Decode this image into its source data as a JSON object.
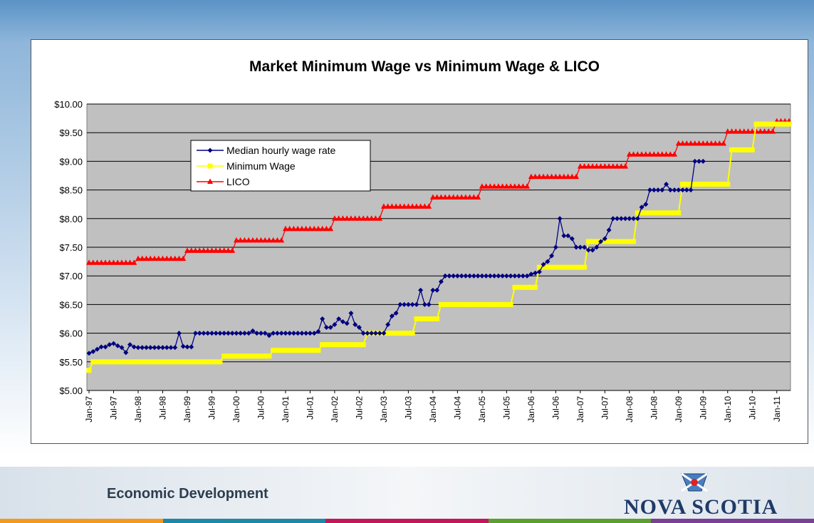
{
  "chart_data": {
    "type": "line",
    "title": "Market Minimum Wage vs Minimum Wage & LICO",
    "categories": [
      "Jan-97",
      null,
      null,
      null,
      null,
      null,
      "Jul-97",
      null,
      null,
      null,
      null,
      null,
      "Jan-98",
      null,
      null,
      null,
      null,
      null,
      "Jul-98",
      null,
      null,
      null,
      null,
      null,
      "Jan-99",
      null,
      null,
      null,
      null,
      null,
      "Jul-99",
      null,
      null,
      null,
      null,
      null,
      "Jan-00",
      null,
      null,
      null,
      null,
      null,
      "Jul-00",
      null,
      null,
      null,
      null,
      null,
      "Jan-01",
      null,
      null,
      null,
      null,
      null,
      "Jul-01",
      null,
      null,
      null,
      null,
      null,
      "Jan-02",
      null,
      null,
      null,
      null,
      null,
      "Jul-02",
      null,
      null,
      null,
      null,
      null,
      "Jan-03",
      null,
      null,
      null,
      null,
      null,
      "Jul-03",
      null,
      null,
      null,
      null,
      null,
      "Jan-04",
      null,
      null,
      null,
      null,
      null,
      "Jul-04",
      null,
      null,
      null,
      null,
      null,
      "Jan-05",
      null,
      null,
      null,
      null,
      null,
      "Jul-05",
      null,
      null,
      null,
      null,
      null,
      "Jan-06",
      null,
      null,
      null,
      null,
      null,
      "Jul-06",
      null,
      null,
      null,
      null,
      null,
      "Jan-07",
      null,
      null,
      null,
      null,
      null,
      "Jul-07",
      null,
      null,
      null,
      null,
      null,
      "Jan-08",
      null,
      null,
      null,
      null,
      null,
      "Jul-08",
      null,
      null,
      null,
      null,
      null,
      "Jan-09",
      null,
      null,
      null,
      null,
      null,
      "Jul-09",
      null,
      null,
      null,
      null,
      null,
      "Jan-10",
      null,
      null,
      null,
      null,
      null,
      "Jul-10",
      null,
      null,
      null,
      null,
      null,
      "Jan-11",
      null,
      null,
      null
    ],
    "series": [
      {
        "name": "Median hourly wage rate",
        "color": "#000080",
        "marker": "diamond",
        "values": [
          5.65,
          5.68,
          5.72,
          5.76,
          5.76,
          5.8,
          5.82,
          5.78,
          5.75,
          5.66,
          5.8,
          5.76,
          5.75,
          5.75,
          5.75,
          5.75,
          5.75,
          5.75,
          5.75,
          5.75,
          5.75,
          5.75,
          6.0,
          5.77,
          5.76,
          5.76,
          6.0,
          6.0,
          6.0,
          6.0,
          6.0,
          6.0,
          6.0,
          6.0,
          6.0,
          6.0,
          6.0,
          6.0,
          6.0,
          6.0,
          6.04,
          6.0,
          6.0,
          6.0,
          5.96,
          6.0,
          6.0,
          6.0,
          6.0,
          6.0,
          6.0,
          6.0,
          6.0,
          6.0,
          6.0,
          6.0,
          6.03,
          6.25,
          6.1,
          6.1,
          6.15,
          6.25,
          6.2,
          6.17,
          6.35,
          6.15,
          6.1,
          6.0,
          6.0,
          6.0,
          6.0,
          6.0,
          6.0,
          6.15,
          6.3,
          6.35,
          6.5,
          6.5,
          6.5,
          6.5,
          6.5,
          6.75,
          6.5,
          6.5,
          6.75,
          6.75,
          6.9,
          7.0,
          7.0,
          7.0,
          7.0,
          7.0,
          7.0,
          7.0,
          7.0,
          7.0,
          7.0,
          7.0,
          7.0,
          7.0,
          7.0,
          7.0,
          7.0,
          7.0,
          7.0,
          7.0,
          7.0,
          7.0,
          7.03,
          7.05,
          7.07,
          7.2,
          7.25,
          7.35,
          7.5,
          8.0,
          7.7,
          7.7,
          7.65,
          7.5,
          7.5,
          7.5,
          7.45,
          7.45,
          7.5,
          7.6,
          7.65,
          7.8,
          8.0,
          8.0,
          8.0,
          8.0,
          8.0,
          8.0,
          8.0,
          8.2,
          8.25,
          8.5,
          8.5,
          8.5,
          8.5,
          8.6,
          8.5,
          8.5,
          8.5,
          8.5,
          8.5,
          8.5,
          9.0,
          9.0,
          9.0,
          null,
          null,
          null,
          null,
          null,
          null,
          null,
          null,
          null,
          null,
          null,
          null,
          null,
          null,
          null,
          null,
          null,
          null,
          null,
          null,
          null
        ]
      },
      {
        "name": "Minimum Wage",
        "color": "#ffff00",
        "marker": "square",
        "values": [
          5.35,
          5.5,
          5.5,
          5.5,
          5.5,
          5.5,
          5.5,
          5.5,
          5.5,
          5.5,
          5.5,
          5.5,
          5.5,
          5.5,
          5.5,
          5.5,
          5.5,
          5.5,
          5.5,
          5.5,
          5.5,
          5.5,
          5.5,
          5.5,
          5.5,
          5.5,
          5.5,
          5.5,
          5.5,
          5.5,
          5.5,
          5.5,
          5.5,
          5.6,
          5.6,
          5.6,
          5.6,
          5.6,
          5.6,
          5.6,
          5.6,
          5.6,
          5.6,
          5.6,
          5.6,
          5.7,
          5.7,
          5.7,
          5.7,
          5.7,
          5.7,
          5.7,
          5.7,
          5.7,
          5.7,
          5.7,
          5.7,
          5.8,
          5.8,
          5.8,
          5.8,
          5.8,
          5.8,
          5.8,
          5.8,
          5.8,
          5.8,
          5.8,
          6.0,
          6.0,
          6.0,
          6.0,
          6.0,
          6.0,
          6.0,
          6.0,
          6.0,
          6.0,
          6.0,
          6.0,
          6.25,
          6.25,
          6.25,
          6.25,
          6.25,
          6.25,
          6.5,
          6.5,
          6.5,
          6.5,
          6.5,
          6.5,
          6.5,
          6.5,
          6.5,
          6.5,
          6.5,
          6.5,
          6.5,
          6.5,
          6.5,
          6.5,
          6.5,
          6.5,
          6.8,
          6.8,
          6.8,
          6.8,
          6.8,
          6.8,
          7.15,
          7.15,
          7.15,
          7.15,
          7.15,
          7.15,
          7.15,
          7.15,
          7.15,
          7.15,
          7.15,
          7.15,
          7.6,
          7.6,
          7.6,
          7.6,
          7.6,
          7.6,
          7.6,
          7.6,
          7.6,
          7.6,
          7.6,
          7.6,
          8.1,
          8.1,
          8.1,
          8.1,
          8.1,
          8.1,
          8.1,
          8.1,
          8.1,
          8.1,
          8.1,
          8.6,
          8.6,
          8.6,
          8.6,
          8.6,
          8.6,
          8.6,
          8.6,
          8.6,
          8.6,
          8.6,
          8.6,
          9.2,
          9.2,
          9.2,
          9.2,
          9.2,
          9.2,
          9.65,
          9.65,
          9.65,
          9.65,
          9.65,
          9.65,
          9.65,
          9.65,
          9.65
        ]
      },
      {
        "name": "LICO",
        "color": "#ff0000",
        "marker": "triangle",
        "values": [
          7.23,
          7.23,
          7.23,
          7.23,
          7.23,
          7.23,
          7.23,
          7.23,
          7.23,
          7.23,
          7.23,
          7.23,
          7.3,
          7.3,
          7.3,
          7.3,
          7.3,
          7.3,
          7.3,
          7.3,
          7.3,
          7.3,
          7.3,
          7.3,
          7.44,
          7.44,
          7.44,
          7.44,
          7.44,
          7.44,
          7.44,
          7.44,
          7.44,
          7.44,
          7.44,
          7.44,
          7.62,
          7.62,
          7.62,
          7.62,
          7.62,
          7.62,
          7.62,
          7.62,
          7.62,
          7.62,
          7.62,
          7.62,
          7.82,
          7.82,
          7.82,
          7.82,
          7.82,
          7.82,
          7.82,
          7.82,
          7.82,
          7.82,
          7.82,
          7.82,
          8.0,
          8.0,
          8.0,
          8.0,
          8.0,
          8.0,
          8.0,
          8.0,
          8.0,
          8.0,
          8.0,
          8.0,
          8.21,
          8.21,
          8.21,
          8.21,
          8.21,
          8.21,
          8.21,
          8.21,
          8.21,
          8.21,
          8.21,
          8.21,
          8.37,
          8.37,
          8.37,
          8.37,
          8.37,
          8.37,
          8.37,
          8.37,
          8.37,
          8.37,
          8.37,
          8.37,
          8.56,
          8.56,
          8.56,
          8.56,
          8.56,
          8.56,
          8.56,
          8.56,
          8.56,
          8.56,
          8.56,
          8.56,
          8.73,
          8.73,
          8.73,
          8.73,
          8.73,
          8.73,
          8.73,
          8.73,
          8.73,
          8.73,
          8.73,
          8.73,
          8.91,
          8.91,
          8.91,
          8.91,
          8.91,
          8.91,
          8.91,
          8.91,
          8.91,
          8.91,
          8.91,
          8.91,
          9.12,
          9.12,
          9.12,
          9.12,
          9.12,
          9.12,
          9.12,
          9.12,
          9.12,
          9.12,
          9.12,
          9.12,
          9.31,
          9.31,
          9.31,
          9.31,
          9.31,
          9.31,
          9.31,
          9.31,
          9.31,
          9.31,
          9.31,
          9.31,
          9.52,
          9.52,
          9.52,
          9.52,
          9.52,
          9.52,
          9.52,
          9.52,
          9.52,
          9.52,
          9.52,
          9.52,
          9.7,
          9.7,
          9.7,
          9.7
        ]
      }
    ],
    "ylim": [
      5,
      10
    ],
    "yticks": [
      {
        "value": 5,
        "label": "$5.00"
      },
      {
        "value": 5.5,
        "label": "$5.50"
      },
      {
        "value": 6,
        "label": "$6.00"
      },
      {
        "value": 6.5,
        "label": "$6.50"
      },
      {
        "value": 7,
        "label": "$7.00"
      },
      {
        "value": 7.5,
        "label": "$7.50"
      },
      {
        "value": 8,
        "label": "$8.00"
      },
      {
        "value": 8.5,
        "label": "$8.50"
      },
      {
        "value": 9,
        "label": "$9.00"
      },
      {
        "value": 9.5,
        "label": "$9.50"
      },
      {
        "value": 10,
        "label": "$10.00"
      }
    ],
    "grid": true,
    "legend": "upper left",
    "plot_color": "#c0c0c0"
  },
  "footer": {
    "department": "Economic Development",
    "logo": "NOVA SCOTIA"
  }
}
